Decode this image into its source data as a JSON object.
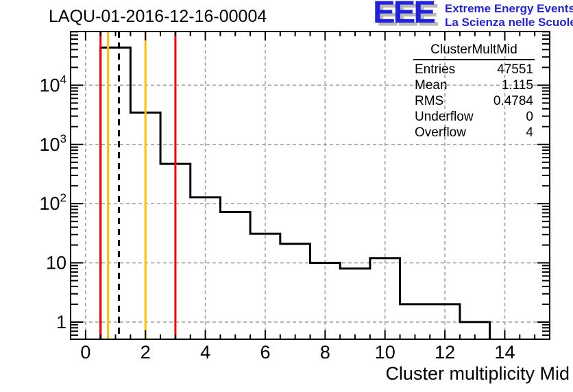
{
  "header": {
    "title": "LAQU-01-2016-12-16-00004"
  },
  "logo": {
    "letters": "EEE",
    "line1": "Extreme Energy Events",
    "line2": "La Scienza nelle Scuole"
  },
  "stats": {
    "title": "ClusterMultMid",
    "rows": [
      {
        "label": "Entries",
        "value": "47551"
      },
      {
        "label": "Mean",
        "value": "1.115"
      },
      {
        "label": "RMS",
        "value": "0.4784"
      },
      {
        "label": "Underflow",
        "value": "0"
      },
      {
        "label": "Overflow",
        "value": "4"
      }
    ]
  },
  "colors": {
    "logo_blue": "#2222dd",
    "marker_red": "#ff0000",
    "marker_yellow": "#ffc000",
    "histogram": "#000000",
    "grid": "#a2a2a2"
  },
  "chart_data": {
    "type": "bar",
    "name": "ClusterMultMid",
    "title": "LAQU-01-2016-12-16-00004",
    "xlabel": "Cluster multiplicity Mid",
    "ylabel": "",
    "ylog": true,
    "grid": true,
    "legend_position": "none",
    "xlim": [
      -0.5,
      15.5
    ],
    "ylim": [
      0.513,
      80700
    ],
    "bin_edges": [
      0.5,
      1.5,
      2.5,
      3.5,
      4.5,
      5.5,
      6.5,
      7.5,
      8.5,
      9.5,
      10.5,
      11.5,
      12.5,
      13.5
    ],
    "values": [
      43300,
      3450,
      470,
      128,
      72,
      31,
      21,
      10,
      8,
      12,
      2,
      2,
      1
    ],
    "x_major_ticks": [
      0,
      2,
      4,
      6,
      8,
      10,
      12,
      14
    ],
    "x_minor_step": 0.5,
    "y_decades": [
      1,
      10,
      100,
      1000,
      10000
    ],
    "marker_lines": [
      {
        "x": 0.5,
        "color": "#ff0000",
        "style": "solid"
      },
      {
        "x": 0.75,
        "color": "#ffc000",
        "style": "solid"
      },
      {
        "x": 1.115,
        "color": "#000000",
        "style": "dashed"
      },
      {
        "x": 2.0,
        "color": "#ffc000",
        "style": "solid"
      },
      {
        "x": 3.0,
        "color": "#ff0000",
        "style": "solid"
      }
    ]
  }
}
